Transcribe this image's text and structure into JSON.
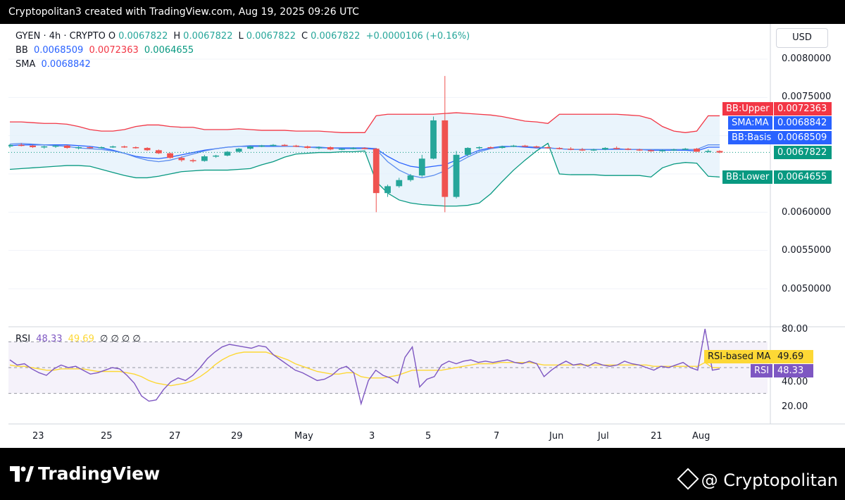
{
  "header": {
    "text": "Cryptopolitan3 created with TradingView.com, Aug 19, 2025 09:26 UTC"
  },
  "legend": {
    "symbol": "GYEN · 4h · CRYPTO",
    "o_label": "O",
    "o": "0.0067822",
    "h_label": "H",
    "h": "0.0067822",
    "l_label": "L",
    "l": "0.0067822",
    "c_label": "C",
    "c": "0.0067822",
    "change": "+0.0000106 (+0.16%)",
    "bb_label": "BB",
    "bb_basis": "0.0068509",
    "bb_upper": "0.0072363",
    "bb_lower": "0.0064655",
    "sma_label": "SMA",
    "sma": "0.0068842",
    "rsi_label": "RSI",
    "rsi": "48.33",
    "rsi_ma": "49.69",
    "rsi_extra": "∅ ∅ ∅ ∅"
  },
  "currency": "USD",
  "tags": {
    "bb_upper": {
      "label": "BB:Upper",
      "value": "0.0072363"
    },
    "sma_ma": {
      "label": "SMA:MA",
      "value": "0.0068842"
    },
    "bb_basis": {
      "label": "BB:Basis",
      "value": "0.0068509"
    },
    "last_price": {
      "value": "0.0067822"
    },
    "bb_lower": {
      "label": "BB:Lower",
      "value": "0.0064655"
    },
    "rsi_ma": {
      "label": "RSI-based MA",
      "value": "49.69"
    },
    "rsi": {
      "label": "RSI",
      "value": "48.33"
    }
  },
  "colors": {
    "up": "#26a69a",
    "down": "#ef5350",
    "bb_upper": "#f23645",
    "bb_lower": "#089981",
    "bb_basis": "#2962ff",
    "sma": "#2962ff",
    "rsi": "#7e57c2",
    "rsi_ma": "#fdd835",
    "bb_fill": "#e3f0fb"
  },
  "branding": {
    "left": "TradingView",
    "right": "@ Cryptopolitan"
  },
  "chart_data": [
    {
      "type": "candlestick",
      "title": "GYEN · 4h · CRYPTO",
      "y_ticks": [
        "0.0080000",
        "0.0075000",
        "0.0060000",
        "0.0055000",
        "0.0050000"
      ],
      "x_ticks": [
        "23",
        "25",
        "27",
        "29",
        "May",
        "3",
        "5",
        "7",
        "Jun",
        "Jul",
        "21",
        "Aug"
      ],
      "ylim": [
        0.0045,
        0.0082
      ],
      "candles": [
        [
          0.00686,
          0.00689,
          0.00684,
          0.00688
        ],
        [
          0.00688,
          0.0069,
          0.00686,
          0.00687
        ],
        [
          0.00687,
          0.00688,
          0.00684,
          0.00685
        ],
        [
          0.00685,
          0.00687,
          0.00683,
          0.00686
        ],
        [
          0.00686,
          0.00688,
          0.00684,
          0.00687
        ],
        [
          0.00687,
          0.00688,
          0.00683,
          0.00684
        ],
        [
          0.00684,
          0.00686,
          0.00682,
          0.00685
        ],
        [
          0.00685,
          0.00686,
          0.00683,
          0.00684
        ],
        [
          0.00684,
          0.00686,
          0.00683,
          0.00685
        ],
        [
          0.00685,
          0.00687,
          0.00684,
          0.00686
        ],
        [
          0.00686,
          0.00687,
          0.00684,
          0.00685
        ],
        [
          0.00685,
          0.00686,
          0.00683,
          0.00684
        ],
        [
          0.00684,
          0.00685,
          0.0068,
          0.00681
        ],
        [
          0.00681,
          0.00682,
          0.00676,
          0.00677
        ],
        [
          0.00677,
          0.00678,
          0.0067,
          0.00671
        ],
        [
          0.00671,
          0.00673,
          0.00666,
          0.00668
        ],
        [
          0.00668,
          0.0067,
          0.00665,
          0.00667
        ],
        [
          0.00667,
          0.00675,
          0.00666,
          0.00673
        ],
        [
          0.00673,
          0.00675,
          0.00671,
          0.00674
        ],
        [
          0.00674,
          0.0068,
          0.00673,
          0.00679
        ],
        [
          0.00679,
          0.00684,
          0.00678,
          0.00683
        ],
        [
          0.00683,
          0.00687,
          0.00682,
          0.00686
        ],
        [
          0.00686,
          0.00688,
          0.00685,
          0.00687
        ],
        [
          0.00687,
          0.00689,
          0.00686,
          0.00688
        ],
        [
          0.00688,
          0.00689,
          0.00686,
          0.00687
        ],
        [
          0.00687,
          0.00688,
          0.00685,
          0.00686
        ],
        [
          0.00686,
          0.00687,
          0.00683,
          0.00684
        ],
        [
          0.00684,
          0.00686,
          0.00682,
          0.00685
        ],
        [
          0.00685,
          0.00686,
          0.00681,
          0.00682
        ],
        [
          0.00682,
          0.00684,
          0.00681,
          0.00683
        ],
        [
          0.00683,
          0.00685,
          0.00682,
          0.00684
        ],
        [
          0.00684,
          0.00685,
          0.00682,
          0.00683
        ],
        [
          0.00683,
          0.00684,
          0.006,
          0.00625
        ],
        [
          0.00625,
          0.00636,
          0.0062,
          0.00634
        ],
        [
          0.00634,
          0.00645,
          0.00632,
          0.00642
        ],
        [
          0.00642,
          0.0065,
          0.0064,
          0.00648
        ],
        [
          0.00648,
          0.00675,
          0.00646,
          0.0067
        ],
        [
          0.0067,
          0.00725,
          0.00669,
          0.0072
        ],
        [
          0.0072,
          0.00778,
          0.006,
          0.0062
        ],
        [
          0.0062,
          0.0068,
          0.00618,
          0.00675
        ],
        [
          0.00675,
          0.00685,
          0.00673,
          0.00684
        ],
        [
          0.00684,
          0.00686,
          0.00682,
          0.00685
        ],
        [
          0.00685,
          0.00686,
          0.00683,
          0.00684
        ],
        [
          0.00684,
          0.00687,
          0.00683,
          0.00686
        ],
        [
          0.00686,
          0.00688,
          0.00685,
          0.00687
        ],
        [
          0.00687,
          0.00688,
          0.00685,
          0.00686
        ],
        [
          0.00686,
          0.00687,
          0.00684,
          0.00685
        ],
        [
          0.00685,
          0.00686,
          0.00683,
          0.00684
        ],
        [
          0.00684,
          0.00685,
          0.00682,
          0.00683
        ],
        [
          0.00683,
          0.00685,
          0.00681,
          0.00682
        ],
        [
          0.00682,
          0.00684,
          0.0068,
          0.00681
        ],
        [
          0.00681,
          0.00683,
          0.0068,
          0.00682
        ],
        [
          0.00682,
          0.00685,
          0.00681,
          0.00684
        ],
        [
          0.00684,
          0.00686,
          0.00682,
          0.00683
        ],
        [
          0.00683,
          0.00684,
          0.00681,
          0.00682
        ],
        [
          0.00682,
          0.00683,
          0.0068,
          0.00681
        ],
        [
          0.00681,
          0.00682,
          0.00679,
          0.0068
        ],
        [
          0.0068,
          0.00682,
          0.00679,
          0.00681
        ],
        [
          0.00681,
          0.00683,
          0.0068,
          0.00682
        ],
        [
          0.00682,
          0.00684,
          0.00681,
          0.00683
        ],
        [
          0.00683,
          0.00684,
          0.0068,
          0.00679
        ],
        [
          0.00679,
          0.00682,
          0.00678,
          0.0068
        ],
        [
          0.0068,
          0.00681,
          0.00677,
          0.00678
        ]
      ],
      "bb_upper": [
        0.00718,
        0.00718,
        0.00717,
        0.00716,
        0.00716,
        0.00715,
        0.00712,
        0.00708,
        0.00706,
        0.00706,
        0.00708,
        0.00712,
        0.00714,
        0.00714,
        0.00712,
        0.00711,
        0.00711,
        0.00708,
        0.00708,
        0.00708,
        0.00709,
        0.00708,
        0.00707,
        0.00707,
        0.00707,
        0.00706,
        0.00706,
        0.00706,
        0.00705,
        0.00704,
        0.00704,
        0.00704,
        0.00726,
        0.00728,
        0.00728,
        0.00728,
        0.00728,
        0.00728,
        0.00729,
        0.0073,
        0.00729,
        0.00728,
        0.00727,
        0.00725,
        0.00722,
        0.00719,
        0.00718,
        0.00716,
        0.00728,
        0.00728,
        0.00728,
        0.00728,
        0.00728,
        0.00728,
        0.00727,
        0.00726,
        0.00722,
        0.00712,
        0.00706,
        0.00704,
        0.00706,
        0.00726,
        0.00726
      ],
      "bb_basis": [
        0.00687,
        0.00688,
        0.00688,
        0.00688,
        0.00688,
        0.00688,
        0.00687,
        0.00686,
        0.00684,
        0.00681,
        0.00677,
        0.00673,
        0.00671,
        0.0067,
        0.00672,
        0.00675,
        0.00678,
        0.00681,
        0.00683,
        0.00685,
        0.00686,
        0.00686,
        0.00686,
        0.00686,
        0.00686,
        0.00686,
        0.00685,
        0.00685,
        0.00684,
        0.00684,
        0.00684,
        0.00684,
        0.00683,
        0.00673,
        0.00665,
        0.0066,
        0.00658,
        0.0066,
        0.00662,
        0.00668,
        0.00675,
        0.00681,
        0.00684,
        0.00686,
        0.00686,
        0.00685,
        0.00684,
        0.00684,
        0.00683,
        0.00682,
        0.00682,
        0.00682,
        0.00682,
        0.00683,
        0.00682,
        0.00682,
        0.00681,
        0.00681,
        0.00681,
        0.00681,
        0.0068,
        0.00685,
        0.00685
      ],
      "bb_lower": [
        0.00656,
        0.00657,
        0.00658,
        0.00659,
        0.0066,
        0.00661,
        0.00661,
        0.0066,
        0.00656,
        0.00652,
        0.00648,
        0.00645,
        0.00645,
        0.00647,
        0.0065,
        0.00653,
        0.00654,
        0.00655,
        0.00655,
        0.00655,
        0.00656,
        0.00657,
        0.00662,
        0.00666,
        0.00672,
        0.00676,
        0.00677,
        0.00678,
        0.00678,
        0.00679,
        0.00679,
        0.0068,
        0.0064,
        0.00625,
        0.00616,
        0.00612,
        0.0061,
        0.00609,
        0.00608,
        0.00608,
        0.00609,
        0.00612,
        0.00624,
        0.0064,
        0.00655,
        0.00668,
        0.0068,
        0.0069,
        0.0065,
        0.00649,
        0.00649,
        0.00649,
        0.00648,
        0.00648,
        0.00648,
        0.00648,
        0.00646,
        0.00658,
        0.00663,
        0.00665,
        0.00664,
        0.00647,
        0.00646
      ],
      "sma": [
        0.00689,
        0.0069,
        0.00689,
        0.00688,
        0.00687,
        0.00686,
        0.00684,
        0.00683,
        0.00682,
        0.0068,
        0.00677,
        0.00672,
        0.00668,
        0.00666,
        0.00668,
        0.00672,
        0.00676,
        0.0068,
        0.00683,
        0.00685,
        0.00686,
        0.00687,
        0.00687,
        0.00687,
        0.00686,
        0.00686,
        0.00685,
        0.00684,
        0.00684,
        0.00683,
        0.00683,
        0.00683,
        0.00682,
        0.00666,
        0.00655,
        0.00648,
        0.00645,
        0.00648,
        0.00654,
        0.00664,
        0.00672,
        0.00679,
        0.00683,
        0.00685,
        0.00686,
        0.00686,
        0.00685,
        0.00684,
        0.00683,
        0.00682,
        0.00682,
        0.00682,
        0.00682,
        0.00682,
        0.00682,
        0.00682,
        0.00682,
        0.00682,
        0.00682,
        0.00682,
        0.00682,
        0.00688,
        0.00688
      ]
    },
    {
      "type": "line",
      "title": "RSI",
      "y_ticks": [
        "80.00",
        "40.00",
        "20.00"
      ],
      "ylim": [
        12,
        84
      ],
      "bands": [
        70,
        50,
        30
      ],
      "series": [
        {
          "name": "RSI",
          "values": [
            56,
            52,
            53,
            49,
            46,
            44,
            49,
            52,
            50,
            51,
            48,
            45,
            46,
            48,
            50,
            49,
            44,
            38,
            28,
            24,
            25,
            33,
            39,
            42,
            40,
            44,
            50,
            57,
            62,
            66,
            68,
            67,
            66,
            65,
            67,
            66,
            60,
            56,
            52,
            48,
            46,
            43,
            40,
            41,
            44,
            49,
            51,
            46,
            22,
            40,
            48,
            44,
            42,
            38,
            58,
            66,
            35,
            41,
            43,
            52,
            55,
            53,
            55,
            56,
            54,
            55,
            54,
            55,
            56,
            54,
            53,
            55,
            53,
            43,
            48,
            52,
            55,
            52,
            53,
            51,
            54,
            52,
            51,
            52,
            55,
            53,
            52,
            50,
            48,
            51,
            50,
            52,
            54,
            50,
            48,
            80,
            48,
            49
          ]
        },
        {
          "name": "RSI-based MA",
          "values": [
            52,
            51,
            51,
            50,
            49,
            48,
            48,
            49,
            49,
            49,
            49,
            48,
            47,
            47,
            47,
            47,
            46,
            45,
            43,
            40,
            38,
            37,
            36,
            37,
            38,
            40,
            43,
            47,
            52,
            56,
            59,
            61,
            62,
            62,
            62,
            62,
            60,
            58,
            56,
            53,
            51,
            49,
            47,
            46,
            45,
            45,
            46,
            46,
            43,
            42,
            42,
            42,
            43,
            44,
            46,
            48,
            48,
            48,
            48,
            48,
            49,
            50,
            51,
            52,
            53,
            53,
            53,
            54,
            54,
            54,
            54,
            54,
            53,
            52,
            52,
            52,
            52,
            52,
            52,
            52,
            52,
            52,
            52,
            52,
            52,
            52,
            52,
            52,
            51,
            51,
            51,
            51,
            51,
            51,
            51,
            54,
            50,
            50
          ]
        }
      ]
    }
  ]
}
